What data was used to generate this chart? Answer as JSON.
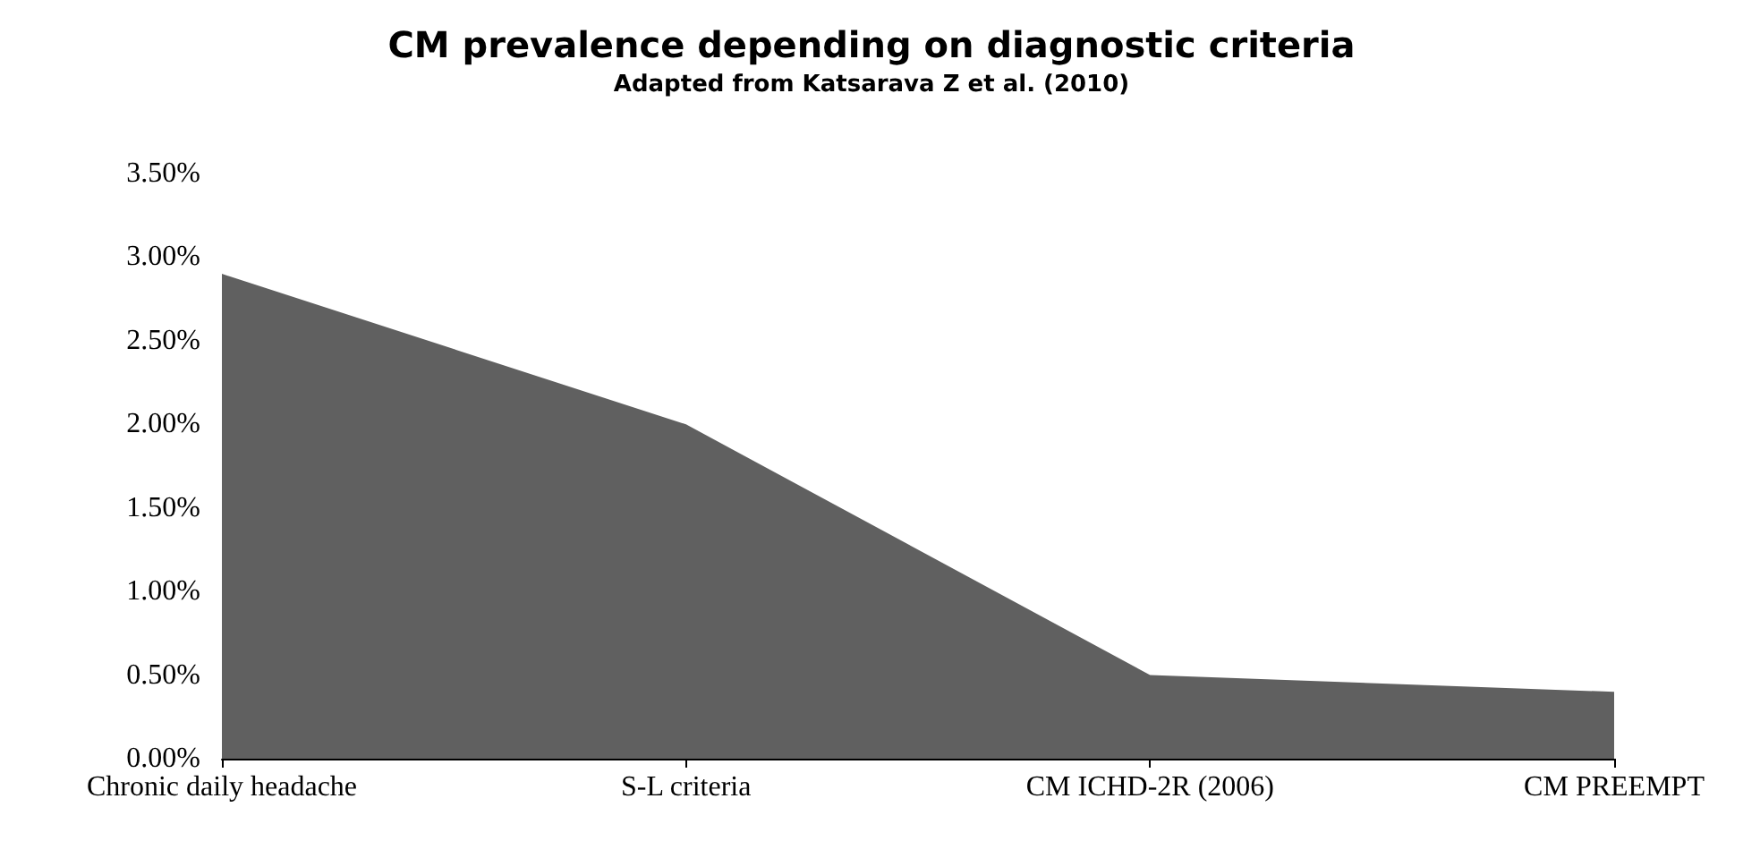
{
  "chart_data": {
    "type": "area",
    "title": "CM prevalence depending on diagnostic criteria",
    "subtitle": "Adapted from Katsarava Z et al. (2010)",
    "categories": [
      "Chronic daily headache",
      "S-L criteria",
      "CM ICHD-2R (2006)",
      "CM PREEMPT"
    ],
    "values": [
      2.9,
      2.0,
      0.5,
      0.4
    ],
    "color": "#606060",
    "ylim": [
      0,
      3.5
    ],
    "yticks": [
      {
        "value": 0,
        "label": "0.00%"
      },
      {
        "value": 0.5,
        "label": "0.50%"
      },
      {
        "value": 1,
        "label": "1.00%"
      },
      {
        "value": 1.5,
        "label": "1.50%"
      },
      {
        "value": 2,
        "label": "2.00%"
      },
      {
        "value": 2.5,
        "label": "2.50%"
      },
      {
        "value": 3,
        "label": "3.00%"
      },
      {
        "value": 3.5,
        "label": "3.50%"
      }
    ],
    "grid": false,
    "marker": "none"
  }
}
